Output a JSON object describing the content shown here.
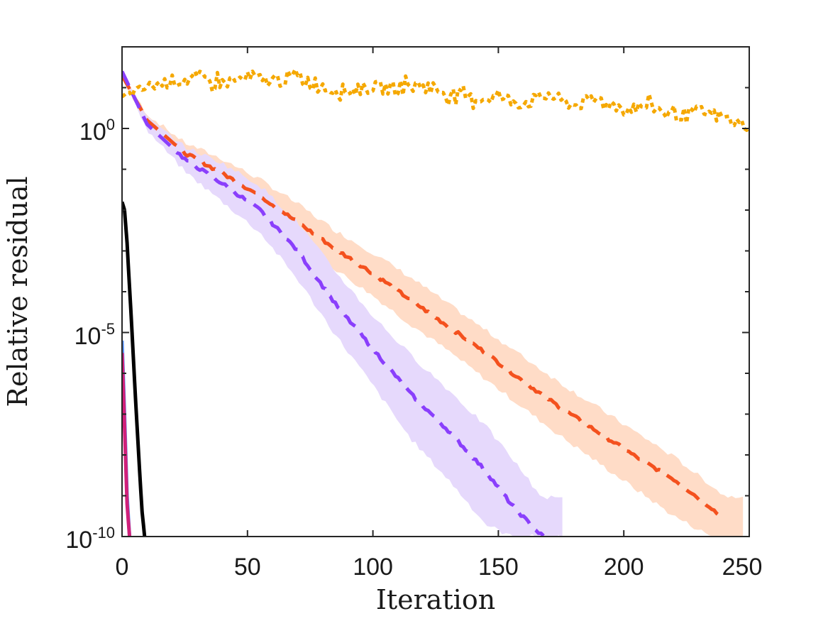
{
  "chart_data": {
    "type": "line",
    "title": "",
    "xlabel": "Iteration",
    "ylabel": "Relative residual",
    "yscale": "log",
    "xlim": [
      0,
      250
    ],
    "ylim_log10": [
      -10,
      2
    ],
    "grid": false,
    "legend": "none",
    "x_ticks": [
      "0",
      "50",
      "100",
      "150",
      "200",
      "250"
    ],
    "y_ticks": [
      {
        "base": "10",
        "exp": "-10"
      },
      {
        "base": "10",
        "exp": "-5"
      },
      {
        "base": "10",
        "exp": "0"
      }
    ],
    "series": [
      {
        "name": "orange-dashed",
        "color": "#F4511E",
        "band_color": "#FFDCC7",
        "style": "dashed",
        "x": [
          0,
          10,
          25,
          40,
          55,
          70,
          85,
          100,
          115,
          130,
          145,
          160,
          175,
          190,
          205,
          220,
          235,
          240
        ],
        "log10_y": [
          1.3,
          0.2,
          -0.6,
          -1.1,
          -1.65,
          -2.3,
          -2.95,
          -3.55,
          -4.2,
          -4.85,
          -5.5,
          -6.2,
          -6.85,
          -7.45,
          -8.05,
          -8.6,
          -9.3,
          -9.6
        ],
        "band_lo": [
          1.3,
          0.05,
          -0.9,
          -1.5,
          -2.1,
          -2.75,
          -3.45,
          -4.1,
          -4.8,
          -5.45,
          -6.15,
          -6.85,
          -7.55,
          -8.2,
          -8.85,
          -9.5,
          -10,
          -10
        ],
        "band_hi": [
          1.3,
          0.35,
          -0.35,
          -0.75,
          -1.25,
          -1.85,
          -2.5,
          -3.05,
          -3.65,
          -4.3,
          -4.95,
          -5.6,
          -6.25,
          -6.85,
          -7.45,
          -8.05,
          -8.75,
          -9.0
        ]
      },
      {
        "name": "purple-dashed",
        "color": "#8A3FFC",
        "band_color": "#E6D9FC",
        "style": "dashed",
        "x": [
          0,
          10,
          25,
          40,
          55,
          70,
          85,
          100,
          115,
          130,
          145,
          155,
          165,
          168
        ],
        "log10_y": [
          1.4,
          0.1,
          -0.75,
          -1.35,
          -2.0,
          -3.0,
          -4.3,
          -5.4,
          -6.5,
          -7.4,
          -8.4,
          -9.2,
          -9.85,
          -10
        ],
        "band_lo": [
          1.4,
          -0.05,
          -1.05,
          -1.8,
          -2.55,
          -3.7,
          -5.05,
          -6.3,
          -7.6,
          -8.6,
          -9.7,
          -10,
          -10,
          -10
        ],
        "band_hi": [
          1.4,
          0.25,
          -0.45,
          -0.85,
          -1.4,
          -2.3,
          -3.5,
          -4.6,
          -5.55,
          -6.4,
          -7.3,
          -8.05,
          -8.85,
          -9.05
        ]
      },
      {
        "name": "yellow-dotted",
        "color": "#F5A800",
        "style": "dotted",
        "x": [
          0,
          10,
          20,
          30,
          40,
          50,
          60,
          70,
          80,
          90,
          100,
          110,
          120,
          130,
          140,
          150,
          160,
          170,
          180,
          190,
          200,
          210,
          220,
          230,
          240,
          250
        ],
        "log10_y": [
          0.75,
          1.0,
          1.15,
          1.2,
          1.1,
          1.2,
          1.15,
          1.25,
          1.0,
          0.9,
          1.0,
          0.95,
          1.05,
          0.85,
          0.7,
          0.75,
          0.6,
          0.8,
          0.55,
          0.7,
          0.45,
          0.55,
          0.3,
          0.4,
          0.25,
          0.0
        ],
        "amplitude": [
          0.15,
          0.25,
          0.3,
          0.4,
          0.3,
          0.35,
          0.3,
          0.45,
          0.35,
          0.3,
          0.3,
          0.35,
          0.4,
          0.35,
          0.3,
          0.3,
          0.35,
          0.3,
          0.3,
          0.35,
          0.3,
          0.3,
          0.3,
          0.3,
          0.35,
          0.15
        ]
      },
      {
        "name": "black-solid",
        "color": "#000000",
        "style": "solid",
        "x": [
          0,
          1,
          2,
          3,
          4,
          5,
          6,
          7,
          8,
          9
        ],
        "log10_y": [
          -1.8,
          -2.0,
          -2.8,
          -3.9,
          -5.0,
          -6.2,
          -7.3,
          -8.4,
          -9.4,
          -10
        ]
      },
      {
        "name": "blue-solid",
        "color": "#5C93F5",
        "style": "solid",
        "x": [
          0,
          1,
          2,
          3
        ],
        "log10_y": [
          -5.2,
          -7.0,
          -9.0,
          -10
        ]
      },
      {
        "name": "magenta-solid",
        "color": "#D1207A",
        "style": "solid",
        "x": [
          0,
          1,
          2,
          3
        ],
        "log10_y": [
          -5.5,
          -7.3,
          -9.2,
          -10
        ]
      }
    ]
  }
}
